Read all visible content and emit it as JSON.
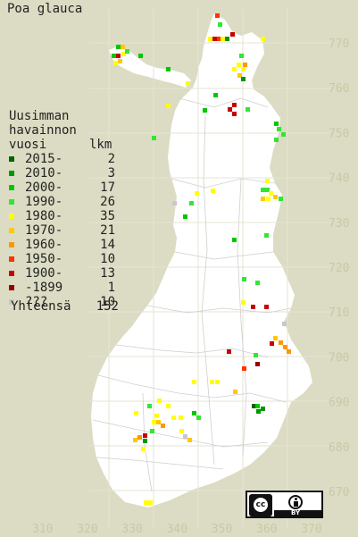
{
  "title": "Poa glauca",
  "legend": {
    "heading": [
      "Uusimman",
      "havainnon"
    ],
    "col_year": "vuosi",
    "col_count": "lkm",
    "rows": [
      {
        "label": "2015-",
        "count": "2",
        "color": "#006400"
      },
      {
        "label": "2010-",
        "count": "3",
        "color": "#009600"
      },
      {
        "label": "2000-",
        "count": "17",
        "color": "#00c800"
      },
      {
        "label": "1990-",
        "count": "26",
        "color": "#32e632"
      },
      {
        "label": "1980-",
        "count": "35",
        "color": "#ffff00"
      },
      {
        "label": "1970-",
        "count": "21",
        "color": "#ffc800"
      },
      {
        "label": "1960-",
        "count": "14",
        "color": "#ff9600"
      },
      {
        "label": "1950-",
        "count": "10",
        "color": "#ff3200"
      },
      {
        "label": "1900-",
        "count": "13",
        "color": "#c80000"
      },
      {
        "label": "-1899",
        "count": "1",
        "color": "#960000"
      },
      {
        "label": "???",
        "count": "10",
        "color": "#c8c8c8"
      }
    ],
    "total_label": "Yhteensä",
    "total_count": "152"
  },
  "axes": {
    "x_ticks": [
      "310",
      "320",
      "330",
      "340",
      "350",
      "360",
      "370"
    ],
    "y_ticks": [
      "770",
      "760",
      "750",
      "740",
      "730",
      "720",
      "710",
      "700",
      "690",
      "680",
      "670"
    ]
  },
  "license": {
    "cc": "cc",
    "by": "BY"
  }
}
